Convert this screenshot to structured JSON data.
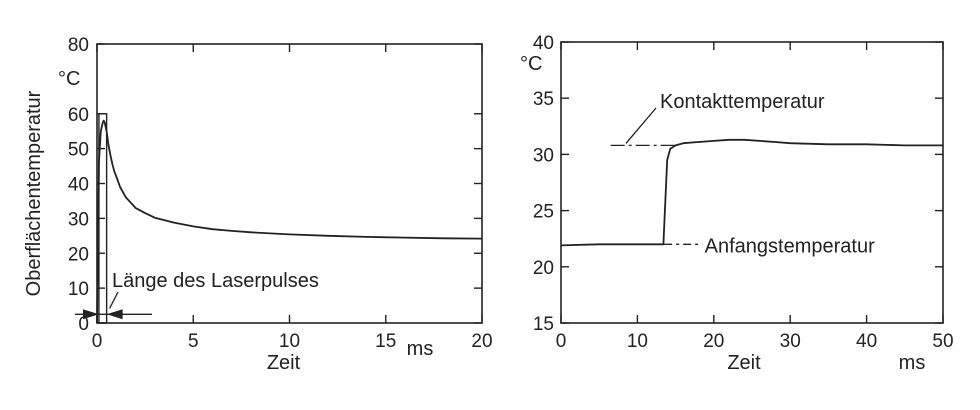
{
  "chart_data": [
    {
      "type": "line",
      "title": "",
      "ylabel": "Oberflächentemperatur",
      "yunit": "°C",
      "xlabel": "Zeit",
      "xunit": "ms",
      "xlim": [
        0,
        20
      ],
      "ylim": [
        0,
        80
      ],
      "xticks": [
        0,
        5,
        10,
        15,
        20
      ],
      "yticks": [
        0,
        10,
        20,
        30,
        40,
        50,
        60,
        80
      ],
      "grid": false,
      "annotation": "Länge des Laserpulses",
      "series": [
        {
          "x": [
            0.0,
            0.05,
            0.1,
            0.2,
            0.3,
            0.35,
            0.4,
            0.5,
            0.6,
            0.7,
            0.8,
            0.9,
            1.0,
            1.2,
            1.5,
            2,
            2.5,
            3,
            4,
            5,
            6,
            7,
            8,
            9,
            10,
            12,
            14,
            16,
            18,
            20
          ],
          "y": [
            0,
            22,
            46,
            55,
            57.5,
            58,
            57.5,
            55,
            51,
            48,
            45.5,
            43.5,
            42,
            39,
            36,
            33,
            31.5,
            30.2,
            28.8,
            27.7,
            26.9,
            26.4,
            26,
            25.7,
            25.4,
            25,
            24.7,
            24.5,
            24.3,
            24.2
          ]
        }
      ]
    },
    {
      "type": "line",
      "title": "",
      "ylabel": "",
      "yunit": "°C",
      "xlabel": "Zeit",
      "xunit": "ms",
      "xlim": [
        0,
        50
      ],
      "ylim": [
        15,
        40
      ],
      "xticks": [
        0,
        10,
        20,
        30,
        40,
        50
      ],
      "yticks": [
        15,
        20,
        25,
        30,
        35,
        40
      ],
      "grid": false,
      "annotations": [
        "Kontakttemperatur",
        "Anfangstemperatur"
      ],
      "series": [
        {
          "x": [
            0,
            5,
            10,
            13.4,
            13.6,
            13.9,
            14.3,
            15,
            16,
            18,
            20,
            22,
            24,
            26,
            28,
            30,
            35,
            40,
            45,
            50
          ],
          "y": [
            21.9,
            22.0,
            22.0,
            22.0,
            25,
            29.5,
            30.5,
            30.8,
            31.0,
            31.1,
            31.2,
            31.3,
            31.3,
            31.2,
            31.1,
            31.0,
            30.9,
            30.9,
            30.8,
            30.8
          ]
        }
      ]
    }
  ]
}
